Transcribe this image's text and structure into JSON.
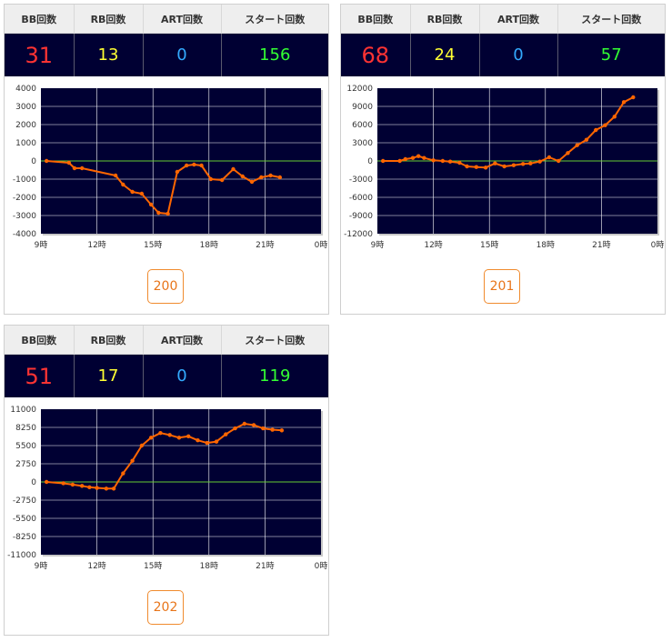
{
  "headers": {
    "bb": "BB回数",
    "rb": "RB回数",
    "art": "ART回数",
    "start": "スタート回数"
  },
  "colors": {
    "bb": "#ff3333",
    "rb": "#ffff33",
    "art": "#33aaff",
    "start": "#33ff33",
    "line": "#ff6600",
    "zero": "#66cc33",
    "plot_bg": "#000033"
  },
  "machines": [
    {
      "id": "200",
      "stats": {
        "bb": "31",
        "rb": "13",
        "art": "0",
        "start": "156"
      },
      "button_label": "200",
      "chart_data": {
        "type": "line",
        "x_ticks": [
          "9時",
          "12時",
          "15時",
          "18時",
          "21時",
          "0時"
        ],
        "x_range_hours": [
          9,
          24
        ],
        "y_ticks": [
          "4000",
          "3000",
          "2000",
          "1000",
          "0",
          "-1000",
          "-2000",
          "-3000",
          "-4000"
        ],
        "ylim": [
          -4000,
          4000
        ],
        "grid": true,
        "series": [
          {
            "x": [
              9.3,
              10.5,
              10.8,
              11.2,
              13.0,
              13.4,
              13.9,
              14.4,
              14.9,
              15.3,
              15.8,
              16.3,
              16.8,
              17.2,
              17.6,
              18.1,
              18.7,
              19.3,
              19.8,
              20.3,
              20.8,
              21.3,
              21.8
            ],
            "y": [
              0,
              -100,
              -400,
              -400,
              -800,
              -1300,
              -1700,
              -1800,
              -2400,
              -2850,
              -2900,
              -600,
              -250,
              -200,
              -250,
              -1000,
              -1050,
              -450,
              -850,
              -1150,
              -900,
              -800,
              -900
            ]
          }
        ]
      }
    },
    {
      "id": "201",
      "stats": {
        "bb": "68",
        "rb": "24",
        "art": "0",
        "start": "57"
      },
      "button_label": "201",
      "chart_data": {
        "type": "line",
        "x_ticks": [
          "9時",
          "12時",
          "15時",
          "18時",
          "21時",
          "0時"
        ],
        "x_range_hours": [
          9,
          24
        ],
        "y_ticks": [
          "12000",
          "9000",
          "6000",
          "3000",
          "0",
          "-3000",
          "-6000",
          "-9000",
          "-12000"
        ],
        "ylim": [
          -12000,
          12000
        ],
        "grid": true,
        "series": [
          {
            "x": [
              9.3,
              10.2,
              10.5,
              10.9,
              11.2,
              11.5,
              12.0,
              12.5,
              12.9,
              13.4,
              13.8,
              14.3,
              14.8,
              15.3,
              15.8,
              16.3,
              16.8,
              17.2,
              17.7,
              18.2,
              18.7,
              19.2,
              19.7,
              20.2,
              20.7,
              21.2,
              21.7,
              22.2,
              22.7
            ],
            "y": [
              0,
              0,
              300,
              500,
              800,
              500,
              100,
              0,
              -100,
              -300,
              -900,
              -1000,
              -1100,
              -400,
              -900,
              -700,
              -500,
              -400,
              -100,
              600,
              0,
              1300,
              2600,
              3500,
              5100,
              5900,
              7300,
              9700,
              10500
            ]
          }
        ]
      }
    },
    {
      "id": "202",
      "stats": {
        "bb": "51",
        "rb": "17",
        "art": "0",
        "start": "119"
      },
      "button_label": "202",
      "chart_data": {
        "type": "line",
        "x_ticks": [
          "9時",
          "12時",
          "15時",
          "18時",
          "21時",
          "0時"
        ],
        "x_range_hours": [
          9,
          24
        ],
        "y_ticks": [
          "11000",
          "8250",
          "5500",
          "2750",
          "0",
          "-2750",
          "-5500",
          "-8250",
          "-11000"
        ],
        "ylim": [
          -11000,
          11000
        ],
        "grid": true,
        "series": [
          {
            "x": [
              9.3,
              10.2,
              10.7,
              11.2,
              11.6,
              12.0,
              12.5,
              12.9,
              13.4,
              13.9,
              14.4,
              14.9,
              15.4,
              15.9,
              16.4,
              16.9,
              17.4,
              17.9,
              18.4,
              18.9,
              19.4,
              19.9,
              20.4,
              20.9,
              21.4,
              21.9
            ],
            "y": [
              0,
              -200,
              -400,
              -600,
              -800,
              -900,
              -1000,
              -1000,
              1300,
              3200,
              5500,
              6700,
              7400,
              7100,
              6700,
              6900,
              6300,
              5900,
              6100,
              7200,
              8100,
              8800,
              8600,
              8100,
              7900,
              7800
            ]
          }
        ]
      }
    }
  ]
}
